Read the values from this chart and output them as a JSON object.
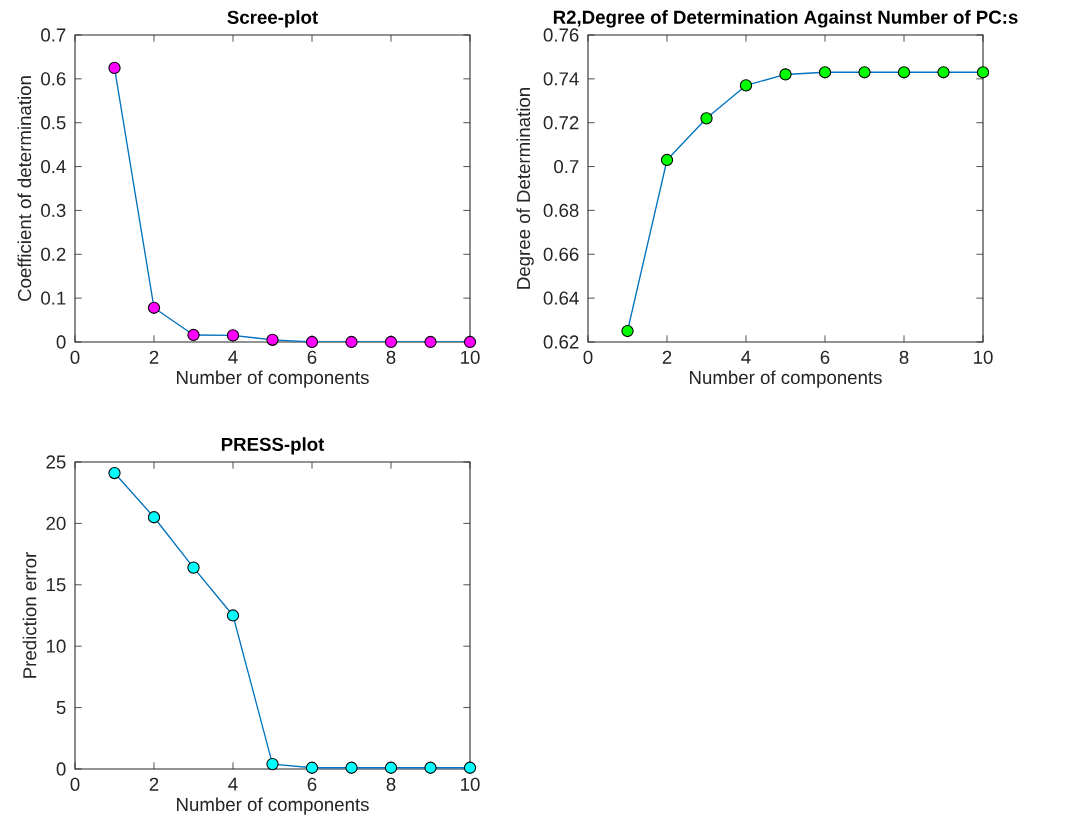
{
  "chart_data": [
    {
      "type": "line",
      "title": "Scree-plot",
      "xlabel": "Number of components",
      "ylabel": "Coefficient of determination",
      "x": [
        1,
        2,
        3,
        4,
        5,
        6,
        7,
        8,
        9,
        10
      ],
      "series": [
        {
          "color": "#0072bd",
          "colors": [
            "#ff00ff",
            "#ff00ff",
            "#ff00ff",
            "#ff00ff",
            "#ff00ff",
            "#ff00ff",
            "#ff00ff",
            "#ff00ff",
            "#ff00ff",
            "#ff00ff"
          ],
          "values": [
            0.625,
            0.078,
            0.016,
            0.015,
            0.005,
            0,
            0,
            0,
            0,
            0
          ]
        }
      ],
      "xlim": [
        0,
        10
      ],
      "ylim": [
        0,
        0.7
      ],
      "xticks": [
        0,
        2,
        4,
        6,
        8,
        10
      ],
      "yticks": [
        0,
        0.1,
        0.2,
        0.3,
        0.4,
        0.5,
        0.6,
        0.7
      ],
      "marker": "circle",
      "line_style": "solid",
      "grid": false
    },
    {
      "type": "line",
      "title": "R2,Degree of Determination Against Number of PC:s",
      "xlabel": "Number of components",
      "ylabel": "Degree of Determination",
      "x": [
        1,
        2,
        3,
        4,
        5,
        6,
        7,
        8,
        9,
        10
      ],
      "series": [
        {
          "color": "#0072bd",
          "colors": [
            "#00ff00",
            "#00ff00",
            "#00ff00",
            "#00ff00",
            "#00ff00",
            "#00ff00",
            "#00ff00",
            "#00ff00",
            "#00ff00",
            "#00ff00"
          ],
          "values": [
            0.625,
            0.703,
            0.722,
            0.737,
            0.742,
            0.743,
            0.743,
            0.743,
            0.743,
            0.743
          ]
        }
      ],
      "xlim": [
        0,
        10
      ],
      "ylim": [
        0.62,
        0.76
      ],
      "xticks": [
        0,
        2,
        4,
        6,
        8,
        10
      ],
      "yticks": [
        0.62,
        0.64,
        0.66,
        0.68,
        0.7,
        0.72,
        0.74,
        0.76
      ],
      "marker": "circle",
      "line_style": "solid",
      "grid": false
    },
    {
      "type": "line",
      "title": "PRESS-plot",
      "xlabel": "Number of components",
      "ylabel": "Prediction error",
      "x": [
        1,
        2,
        3,
        4,
        5,
        6,
        7,
        8,
        9,
        10
      ],
      "series": [
        {
          "color": "#0072bd",
          "colors": [
            "#00ffff",
            "#00ffff",
            "#00ffff",
            "#00ffff",
            "#00ffff",
            "#00ffff",
            "#00ffff",
            "#00ffff",
            "#00ffff",
            "#00ffff"
          ],
          "values": [
            24.1,
            20.5,
            16.4,
            12.5,
            0.4,
            0.1,
            0.1,
            0.1,
            0.1,
            0.1
          ]
        }
      ],
      "xlim": [
        0,
        10
      ],
      "ylim": [
        0,
        25
      ],
      "xticks": [
        0,
        2,
        4,
        6,
        8,
        10
      ],
      "yticks": [
        0,
        5,
        10,
        15,
        20,
        25
      ],
      "marker": "circle",
      "line_style": "solid",
      "grid": false
    }
  ]
}
